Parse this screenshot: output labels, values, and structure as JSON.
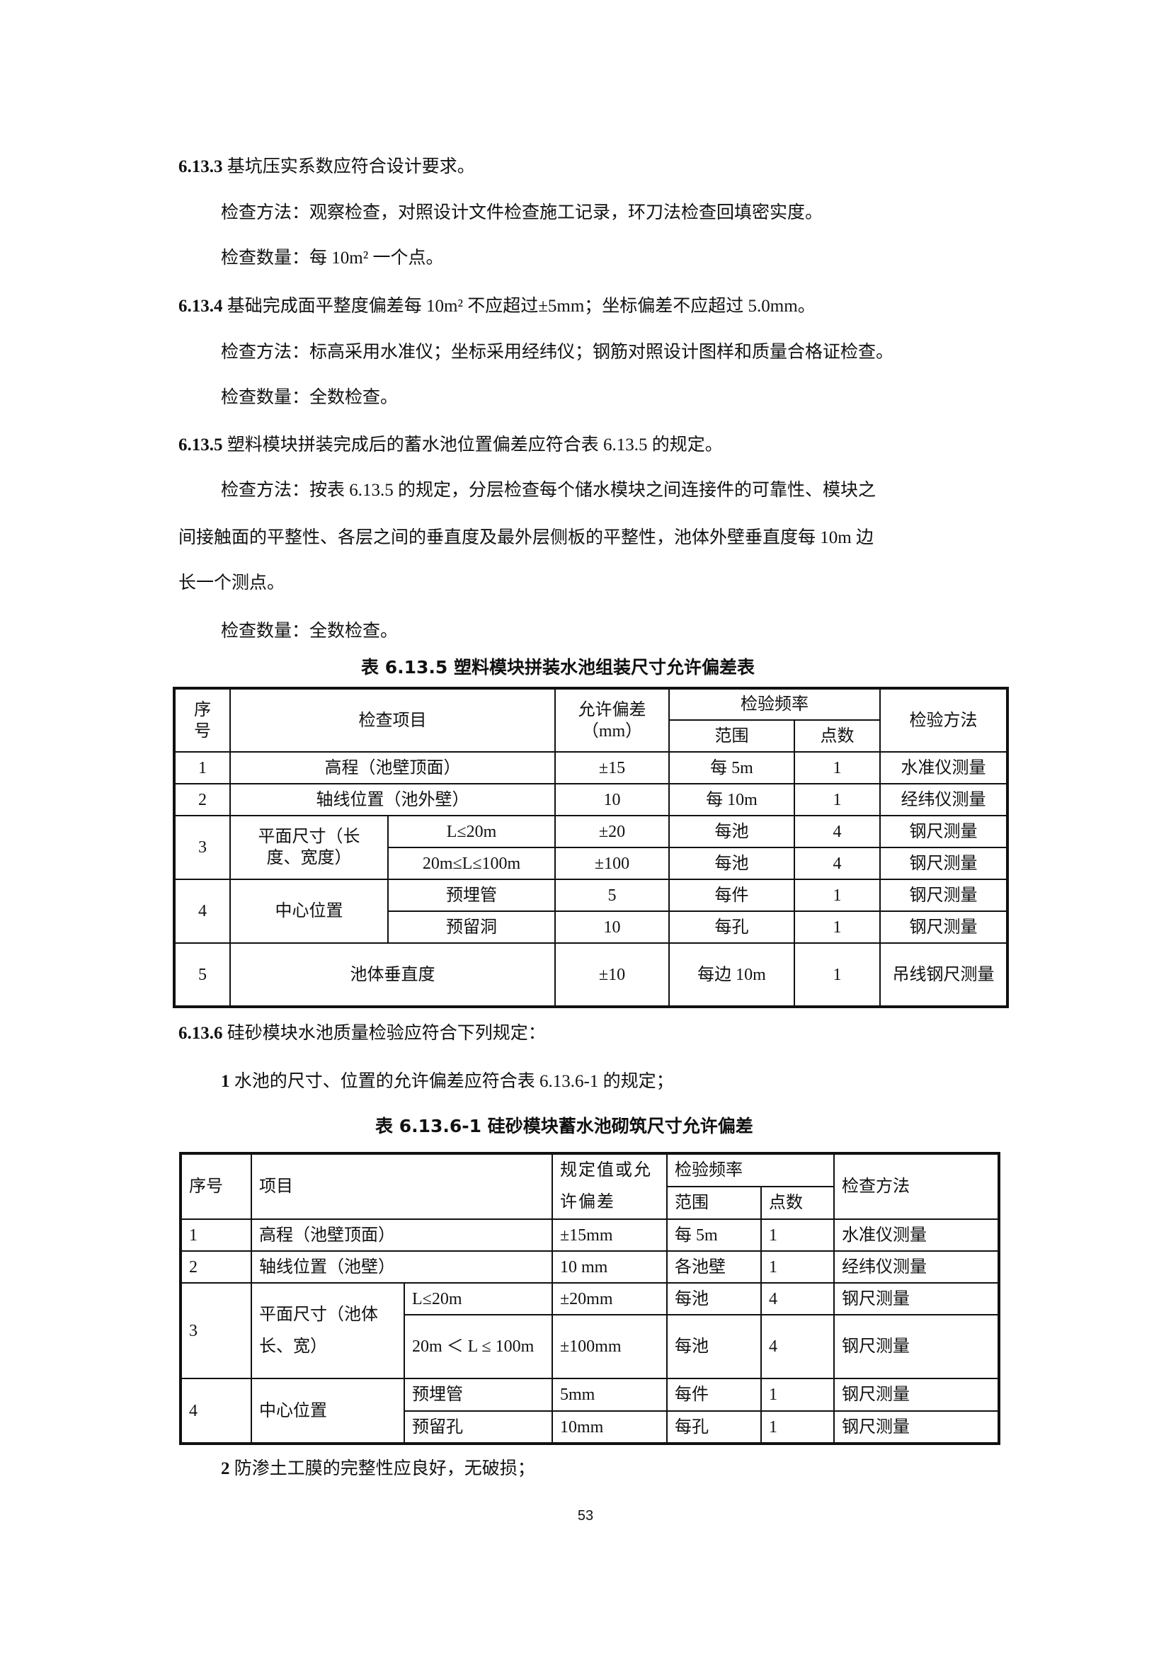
{
  "paragraphs": [
    {
      "num": "6.13.3",
      "text": " 基坑压实系数应符合设计要求。"
    },
    {
      "text": "检查方法：观察检查，对照设计文件检查施工记录，环刀法检查回填密实度。"
    },
    {
      "text": "检查数量：每 10m² 一个点。"
    },
    {
      "num": "6.13.4",
      "text": " 基础完成面平整度偏差每 10m² 不应超过±5mm；坐标偏差不应超过 5.0mm。"
    },
    {
      "text": "检查方法：标高采用水准仪；坐标采用经纬仪；钢筋对照设计图样和质量合格证检查。"
    },
    {
      "text": "检查数量：全数检查。"
    },
    {
      "num": "6.13.5",
      "text": " 塑料模块拼装完成后的蓄水池位置偏差应符合表 6.13.5 的规定。"
    },
    {
      "text": "检查方法：按表 6.13.5 的规定，分层检查每个储水模块之间连接件的可靠性、模块之"
    },
    {
      "text": "间接触面的平整性、各层之间的垂直度及最外层侧板的平整性，池体外壁垂直度每 10m 边"
    },
    {
      "text": "长一个测点。"
    },
    {
      "text": "检查数量：全数检查。"
    },
    {
      "num": "6.13.6",
      "text": " 硅砂模块水池质量检验应符合下列规定："
    },
    {
      "num": "1",
      "text": " 水池的尺寸、位置的允许偏差应符合表 6.13.6-1 的规定；"
    },
    {
      "num": "2",
      "text": " 防渗土工膜的完整性应良好，无破损；"
    }
  ],
  "table1": {
    "caption": "表 6.13.5 塑料模块拼装水池组装尺寸允许偏差表",
    "header": {
      "seq": "序号",
      "item": "检查项目",
      "tol": "允许偏差",
      "tol_unit": "（mm）",
      "freq": "检验频率",
      "range": "范围",
      "points": "点数",
      "method": "检验方法"
    },
    "rows": [
      {
        "seq": "1",
        "item": "高程（池壁顶面）",
        "tol": "±15",
        "range": "每 5m",
        "points": "1",
        "method": "水准仪测量"
      },
      {
        "seq": "2",
        "item": "轴线位置（池外壁）",
        "tol": "10",
        "range": "每 10m",
        "points": "1",
        "method": "经纬仪测量"
      },
      {
        "seq": "3",
        "item": "平面尺寸（长度、宽度）",
        "sub": "L≤20m",
        "tol": "±20",
        "range": "每池",
        "points": "4",
        "method": "钢尺测量"
      },
      {
        "sub": "20m≤L≤100m",
        "tol": "±100",
        "range": "每池",
        "points": "4",
        "method": "钢尺测量"
      },
      {
        "seq": "4",
        "item": "中心位置",
        "sub": "预埋管",
        "tol": "5",
        "range": "每件",
        "points": "1",
        "method": "钢尺测量"
      },
      {
        "sub": "预留洞",
        "tol": "10",
        "range": "每孔",
        "points": "1",
        "method": "钢尺测量"
      },
      {
        "seq": "5",
        "item": "池体垂直度",
        "tol": "±10",
        "range": "每边 10m",
        "points": "1",
        "method": "吊线钢尺测量"
      }
    ]
  },
  "table2": {
    "caption": "表 6.13.6-1 硅砂模块蓄水池砌筑尺寸允许偏差",
    "header": {
      "seq": "序号",
      "item": "项目",
      "tol": "规定值或允许偏差",
      "freq": "检验频率",
      "range": "范围",
      "points": "点数",
      "method": "检查方法"
    },
    "rows": [
      {
        "seq": "1",
        "item": "高程（池壁顶面）",
        "tol": "±15mm",
        "range": "每 5m",
        "points": "1",
        "method": "水准仪测量"
      },
      {
        "seq": "2",
        "item": "轴线位置（池壁）",
        "tol": "10 mm",
        "range": "各池壁",
        "points": "1",
        "method": "经纬仪测量"
      },
      {
        "seq": "3",
        "item": "平面尺寸（池体长、宽）",
        "sub": "L≤20m",
        "tol": "±20mm",
        "range": "每池",
        "points": "4",
        "method": "钢尺测量"
      },
      {
        "sub": "20m ＜ L ≤ 100m",
        "tol": "±100mm",
        "range": "每池",
        "points": "4",
        "method": "钢尺测量"
      },
      {
        "seq": "4",
        "item": "中心位置",
        "sub": "预埋管",
        "tol": "5mm",
        "range": "每件",
        "points": "1",
        "method": "钢尺测量"
      },
      {
        "sub": "预留孔",
        "tol": "10mm",
        "range": "每孔",
        "points": "1",
        "method": "钢尺测量"
      }
    ]
  },
  "page_number": "53"
}
